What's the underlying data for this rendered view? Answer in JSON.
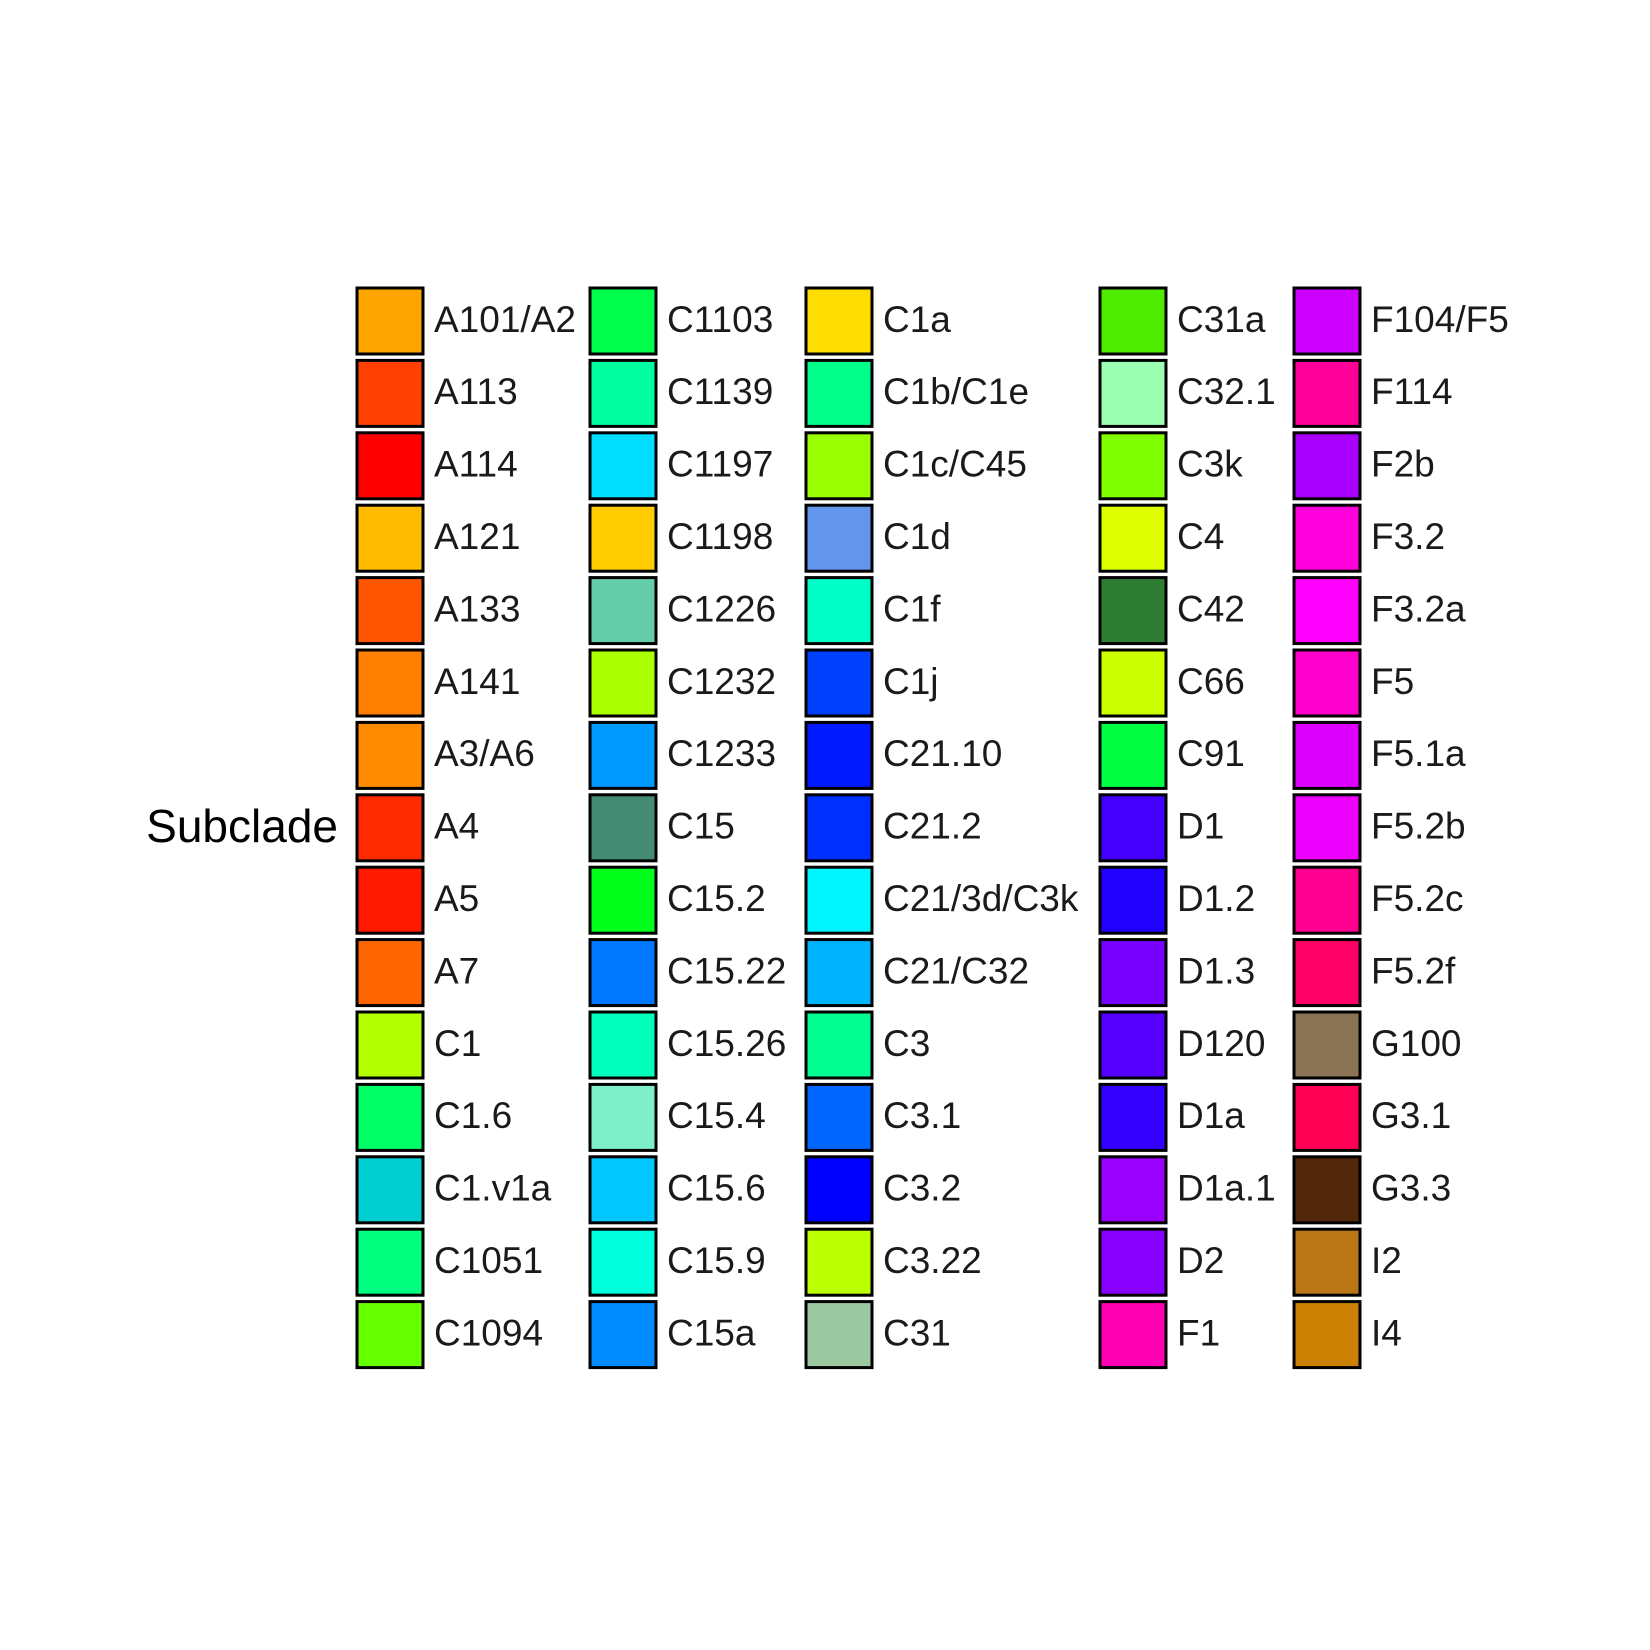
{
  "chart_data": {
    "type": "legend",
    "title": "Subclade",
    "columns": [
      [
        {
          "label": "A101/A2",
          "color": "#FFA500"
        },
        {
          "label": "A113",
          "color": "#FF4000"
        },
        {
          "label": "A114",
          "color": "#FF0000"
        },
        {
          "label": "A121",
          "color": "#FFBB00"
        },
        {
          "label": "A133",
          "color": "#FF5500"
        },
        {
          "label": "A141",
          "color": "#FF8000"
        },
        {
          "label": "A3/A6",
          "color": "#FF8C00"
        },
        {
          "label": "A4",
          "color": "#FF2A00"
        },
        {
          "label": "A5",
          "color": "#FF1A00"
        },
        {
          "label": "A7",
          "color": "#FF6600"
        },
        {
          "label": "C1",
          "color": "#B3FF00"
        },
        {
          "label": "C1.6",
          "color": "#00FF66"
        },
        {
          "label": "C1.v1a",
          "color": "#00CED1"
        },
        {
          "label": "C1051",
          "color": "#00FF7F"
        },
        {
          "label": "C1094",
          "color": "#66FF00"
        }
      ],
      [
        {
          "label": "C1103",
          "color": "#00FF4D"
        },
        {
          "label": "C1139",
          "color": "#00FFA0"
        },
        {
          "label": "C1197",
          "color": "#00DDFF"
        },
        {
          "label": "C1198",
          "color": "#FFCC00"
        },
        {
          "label": "C1226",
          "color": "#66CDAA"
        },
        {
          "label": "C1232",
          "color": "#AAFF00"
        },
        {
          "label": "C1233",
          "color": "#0099FF"
        },
        {
          "label": "C15",
          "color": "#458B74"
        },
        {
          "label": "C15.2",
          "color": "#00FF1A"
        },
        {
          "label": "C15.22",
          "color": "#0077FF"
        },
        {
          "label": "C15.26",
          "color": "#00FFBB"
        },
        {
          "label": "C15.4",
          "color": "#7FEFC9"
        },
        {
          "label": "C15.6",
          "color": "#00C8FF"
        },
        {
          "label": "C15.9",
          "color": "#00FFDD"
        },
        {
          "label": "C15a",
          "color": "#008CFF"
        }
      ],
      [
        {
          "label": "C1a",
          "color": "#FFDD00"
        },
        {
          "label": "C1b/C1e",
          "color": "#00FF88"
        },
        {
          "label": "C1c/C45",
          "color": "#99FF00"
        },
        {
          "label": "C1d",
          "color": "#6495ED"
        },
        {
          "label": "C1f",
          "color": "#00FFC8"
        },
        {
          "label": "C1j",
          "color": "#0040FF"
        },
        {
          "label": "C21.10",
          "color": "#0019FF"
        },
        {
          "label": "C21.2",
          "color": "#0030FF"
        },
        {
          "label": "C21/3d/C3k",
          "color": "#00F5FF"
        },
        {
          "label": "C21/C32",
          "color": "#00B3FF"
        },
        {
          "label": "C3",
          "color": "#00FF90"
        },
        {
          "label": "C3.1",
          "color": "#0066FF"
        },
        {
          "label": "C3.2",
          "color": "#0000FF"
        },
        {
          "label": "C3.22",
          "color": "#BBFF00"
        },
        {
          "label": "C31",
          "color": "#9BC8A0"
        }
      ],
      [
        {
          "label": "C31a",
          "color": "#4DEB00"
        },
        {
          "label": "C32.1",
          "color": "#9AFFB0"
        },
        {
          "label": "C3k",
          "color": "#80FF00"
        },
        {
          "label": "C4",
          "color": "#DDFF00"
        },
        {
          "label": "C42",
          "color": "#2E7D32"
        },
        {
          "label": "C66",
          "color": "#CCFF00"
        },
        {
          "label": "C91",
          "color": "#00FF40"
        },
        {
          "label": "D1",
          "color": "#4400FF"
        },
        {
          "label": "D1.2",
          "color": "#2200FF"
        },
        {
          "label": "D1.3",
          "color": "#7700FF"
        },
        {
          "label": "D120",
          "color": "#5500FF"
        },
        {
          "label": "D1a",
          "color": "#3300FF"
        },
        {
          "label": "D1a.1",
          "color": "#9900FF"
        },
        {
          "label": "D2",
          "color": "#8800FF"
        },
        {
          "label": "F1",
          "color": "#FF00B3"
        }
      ],
      [
        {
          "label": "F104/F5",
          "color": "#CC00FF"
        },
        {
          "label": "F114",
          "color": "#FF0099"
        },
        {
          "label": "F2b",
          "color": "#AA00FF"
        },
        {
          "label": "F3.2",
          "color": "#FF00DD"
        },
        {
          "label": "F3.2a",
          "color": "#FF00FF"
        },
        {
          "label": "F5",
          "color": "#FF00CC"
        },
        {
          "label": "F5.1a",
          "color": "#DD00FF"
        },
        {
          "label": "F5.2b",
          "color": "#EE00FF"
        },
        {
          "label": "F5.2c",
          "color": "#FF0090"
        },
        {
          "label": "F5.2f",
          "color": "#FF0066"
        },
        {
          "label": "G100",
          "color": "#8B7355"
        },
        {
          "label": "G3.1",
          "color": "#FF0055"
        },
        {
          "label": "G3.3",
          "color": "#52270A"
        },
        {
          "label": "I2",
          "color": "#BA7716"
        },
        {
          "label": "I4",
          "color": "#CD8103"
        }
      ]
    ]
  }
}
